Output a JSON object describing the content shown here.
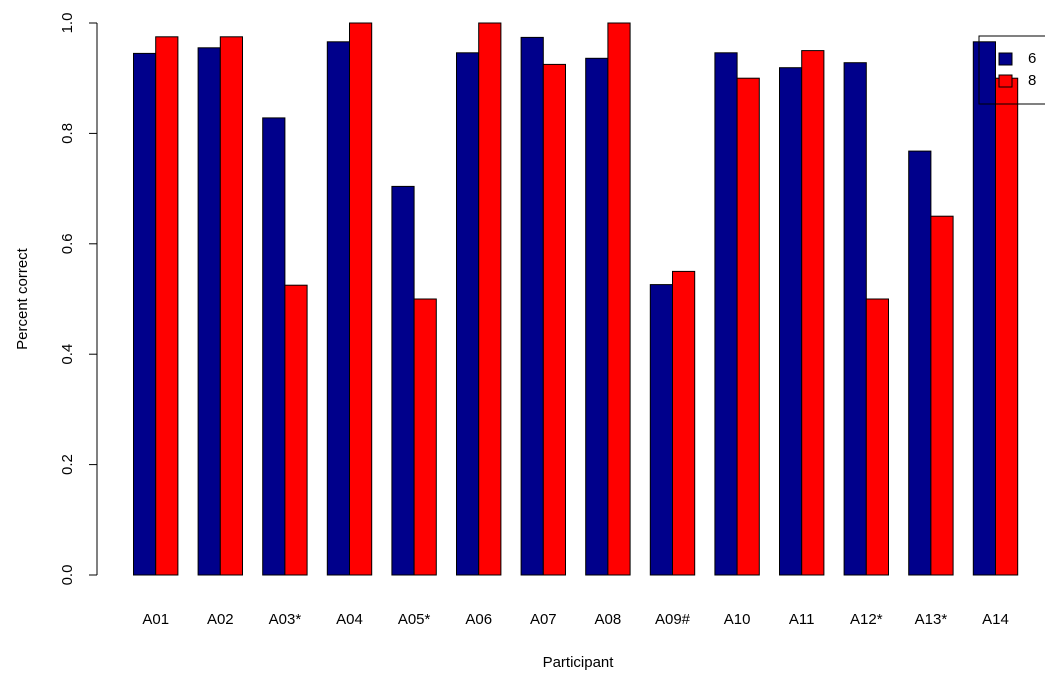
{
  "chart_data": {
    "type": "bar",
    "categories": [
      "A01",
      "A02",
      "A03*",
      "A04",
      "A05*",
      "A06",
      "A07",
      "A08",
      "A09#",
      "A10",
      "A11",
      "A12*",
      "A13*",
      "A14"
    ],
    "series": [
      {
        "name": "6",
        "color": "#00008B",
        "values": [
          0.945,
          0.955,
          0.828,
          0.966,
          0.704,
          0.946,
          0.974,
          0.936,
          0.526,
          0.946,
          0.919,
          0.928,
          0.768,
          0.966
        ]
      },
      {
        "name": "8",
        "color": "#FF0000",
        "values": [
          0.975,
          0.975,
          0.525,
          1.0,
          0.5,
          1.0,
          0.925,
          1.0,
          0.55,
          0.9,
          0.95,
          0.5,
          0.65,
          0.9
        ]
      }
    ],
    "ylim": [
      0,
      1
    ],
    "yticks": [
      "0.0",
      "0.2",
      "0.4",
      "0.6",
      "0.8",
      "1.0"
    ],
    "xlabel": "Participant",
    "ylabel": "Percent correct",
    "grid": false,
    "legend_position": "top-right"
  }
}
